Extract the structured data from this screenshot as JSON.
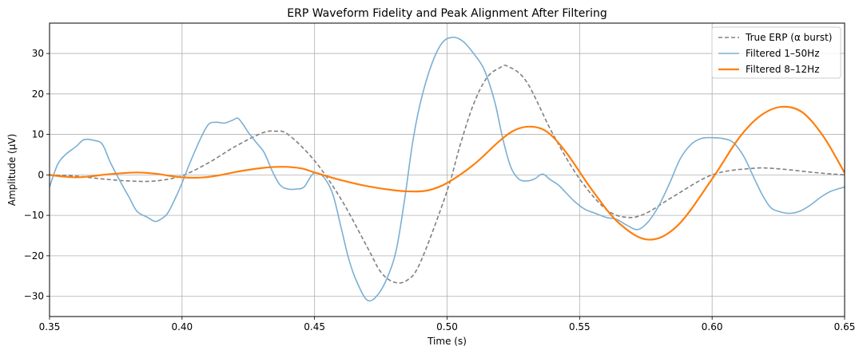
{
  "chart_data": {
    "type": "line",
    "title": "ERP Waveform Fidelity and Peak Alignment After Filtering",
    "xlabel": "Time (s)",
    "ylabel": "Amplitude (µV)",
    "xlim": [
      0.35,
      0.65
    ],
    "ylim": [
      -35,
      37.5
    ],
    "xticks": [
      0.35,
      0.4,
      0.45,
      0.5,
      0.55,
      0.6,
      0.65
    ],
    "xtick_labels": [
      "0.35",
      "0.40",
      "0.45",
      "0.50",
      "0.55",
      "0.60",
      "0.65"
    ],
    "yticks": [
      -30,
      -20,
      -10,
      0,
      10,
      20,
      30
    ],
    "ytick_labels": [
      "−30",
      "−20",
      "−10",
      "0",
      "10",
      "20",
      "30"
    ],
    "grid": true,
    "legend_position": "top-right",
    "series": [
      {
        "name": "True ERP (α burst)",
        "color": "#808080",
        "style": "dashed",
        "x": [
          0.35,
          0.36,
          0.37,
          0.38,
          0.39,
          0.4,
          0.41,
          0.42,
          0.43,
          0.435,
          0.44,
          0.45,
          0.46,
          0.47,
          0.475,
          0.48,
          0.485,
          0.49,
          0.5,
          0.505,
          0.51,
          0.515,
          0.52,
          0.523,
          0.53,
          0.54,
          0.55,
          0.56,
          0.568,
          0.575,
          0.585,
          0.6,
          0.615,
          0.625,
          0.64,
          0.65
        ],
        "y": [
          0.0,
          -0.3,
          -1.0,
          -1.5,
          -1.5,
          -0.2,
          3.0,
          7.0,
          10.3,
          10.8,
          10.0,
          3.5,
          -6.0,
          -18.0,
          -24.0,
          -26.5,
          -26.0,
          -21.5,
          -4.0,
          7.5,
          17.5,
          24.0,
          26.5,
          26.8,
          23.0,
          10.0,
          -1.0,
          -8.5,
          -10.5,
          -9.5,
          -5.5,
          0.0,
          1.6,
          1.5,
          0.5,
          0.0
        ]
      },
      {
        "name": "Filtered 1–50Hz",
        "color": "#7bafd4",
        "style": "solid",
        "x": [
          0.35,
          0.353,
          0.356,
          0.36,
          0.363,
          0.367,
          0.37,
          0.373,
          0.377,
          0.38,
          0.383,
          0.387,
          0.39,
          0.393,
          0.395,
          0.398,
          0.4,
          0.403,
          0.407,
          0.41,
          0.413,
          0.416,
          0.419,
          0.421,
          0.423,
          0.425,
          0.428,
          0.431,
          0.434,
          0.437,
          0.44,
          0.443,
          0.446,
          0.449,
          0.451,
          0.454,
          0.457,
          0.46,
          0.463,
          0.466,
          0.47,
          0.474,
          0.478,
          0.481,
          0.484,
          0.487,
          0.49,
          0.494,
          0.498,
          0.502,
          0.506,
          0.51,
          0.514,
          0.518,
          0.521,
          0.524,
          0.527,
          0.53,
          0.533,
          0.536,
          0.539,
          0.542,
          0.545,
          0.548,
          0.552,
          0.556,
          0.56,
          0.564,
          0.568,
          0.572,
          0.576,
          0.58,
          0.584,
          0.588,
          0.592,
          0.596,
          0.6,
          0.604,
          0.608,
          0.612,
          0.616,
          0.619,
          0.622,
          0.625,
          0.629,
          0.633,
          0.637,
          0.641,
          0.645,
          0.65
        ],
        "y": [
          -3.0,
          2.5,
          5.0,
          7.0,
          8.7,
          8.5,
          7.5,
          3.0,
          -2.0,
          -5.5,
          -9.0,
          -10.5,
          -11.5,
          -10.5,
          -9.0,
          -5.0,
          -2.0,
          3.0,
          9.0,
          12.5,
          13.0,
          12.8,
          13.5,
          14.0,
          12.5,
          10.5,
          8.0,
          5.5,
          1.0,
          -2.5,
          -3.5,
          -3.5,
          -3.0,
          0.0,
          0.5,
          -1.0,
          -5.0,
          -13.0,
          -21.0,
          -26.5,
          -31.0,
          -29.5,
          -24.5,
          -18.0,
          -6.0,
          8.0,
          18.0,
          27.0,
          32.5,
          34.0,
          33.0,
          30.0,
          26.0,
          18.0,
          9.0,
          2.0,
          -1.0,
          -1.5,
          -1.0,
          0.2,
          -1.2,
          -2.5,
          -4.5,
          -6.5,
          -8.5,
          -9.5,
          -10.5,
          -11.0,
          -12.5,
          -13.5,
          -11.5,
          -7.5,
          -2.0,
          4.0,
          7.5,
          9.0,
          9.2,
          9.0,
          8.0,
          4.5,
          -1.0,
          -5.0,
          -8.0,
          -9.0,
          -9.5,
          -9.0,
          -7.5,
          -5.5,
          -4.0,
          -3.0
        ]
      },
      {
        "name": "Filtered 8–12Hz",
        "color": "#ff7f0e",
        "style": "solid",
        "x": [
          0.35,
          0.355,
          0.36,
          0.365,
          0.37,
          0.375,
          0.383,
          0.39,
          0.395,
          0.4,
          0.405,
          0.41,
          0.415,
          0.42,
          0.43,
          0.438,
          0.445,
          0.45,
          0.46,
          0.47,
          0.48,
          0.487,
          0.493,
          0.5,
          0.51,
          0.52,
          0.526,
          0.532,
          0.538,
          0.545,
          0.555,
          0.565,
          0.576,
          0.587,
          0.6,
          0.61,
          0.618,
          0.626,
          0.634,
          0.642,
          0.65
        ],
        "y": [
          0.0,
          -0.4,
          -0.6,
          -0.4,
          0.0,
          0.3,
          0.6,
          0.3,
          -0.2,
          -0.6,
          -0.7,
          -0.5,
          0.0,
          0.7,
          1.7,
          2.0,
          1.6,
          0.6,
          -1.3,
          -2.8,
          -3.8,
          -4.1,
          -3.8,
          -2.0,
          2.5,
          8.5,
          11.2,
          11.9,
          10.5,
          5.5,
          -4.0,
          -12.0,
          -16.0,
          -12.5,
          -1.0,
          9.0,
          14.5,
          16.8,
          15.5,
          9.5,
          0.5
        ]
      }
    ]
  }
}
